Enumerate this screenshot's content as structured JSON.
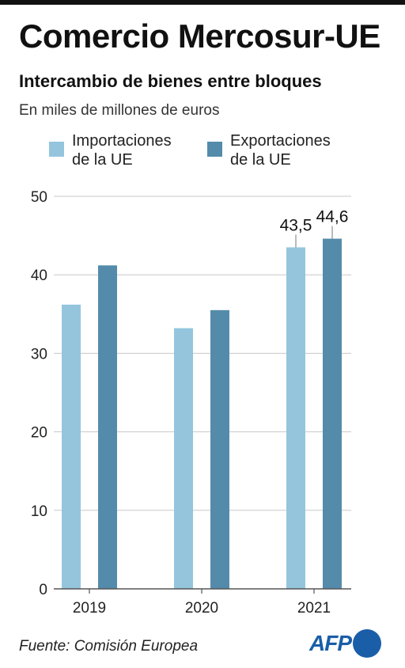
{
  "header": {
    "title": "Comercio Mercosur-UE",
    "subtitle": "Intercambio de bienes entre bloques",
    "unit": "En miles de millones de euros"
  },
  "legend": [
    {
      "label_line1": "Importaciones",
      "label_line2": "de la UE",
      "color": "#94c5dd"
    },
    {
      "label_line1": "Exportaciones",
      "label_line2": "de la UE",
      "color": "#548bab"
    }
  ],
  "footer": {
    "source": "Fuente: Comisión Europea",
    "logo_text": "AFP"
  },
  "chart_data": {
    "type": "bar",
    "categories": [
      "2019",
      "2020",
      "2021"
    ],
    "series": [
      {
        "name": "Importaciones de la UE",
        "color": "#94c5dd",
        "values": [
          36.2,
          33.2,
          43.5
        ]
      },
      {
        "name": "Exportaciones de la UE",
        "color": "#548bab",
        "values": [
          41.2,
          35.5,
          44.6
        ]
      }
    ],
    "ylim": [
      0,
      50
    ],
    "yticks": [
      0,
      10,
      20,
      30,
      40,
      50
    ],
    "grid": true,
    "legend_position": "top",
    "data_labels": [
      {
        "category": "2021",
        "series": 0,
        "text": "43,5"
      },
      {
        "category": "2021",
        "series": 1,
        "text": "44,6"
      }
    ]
  }
}
